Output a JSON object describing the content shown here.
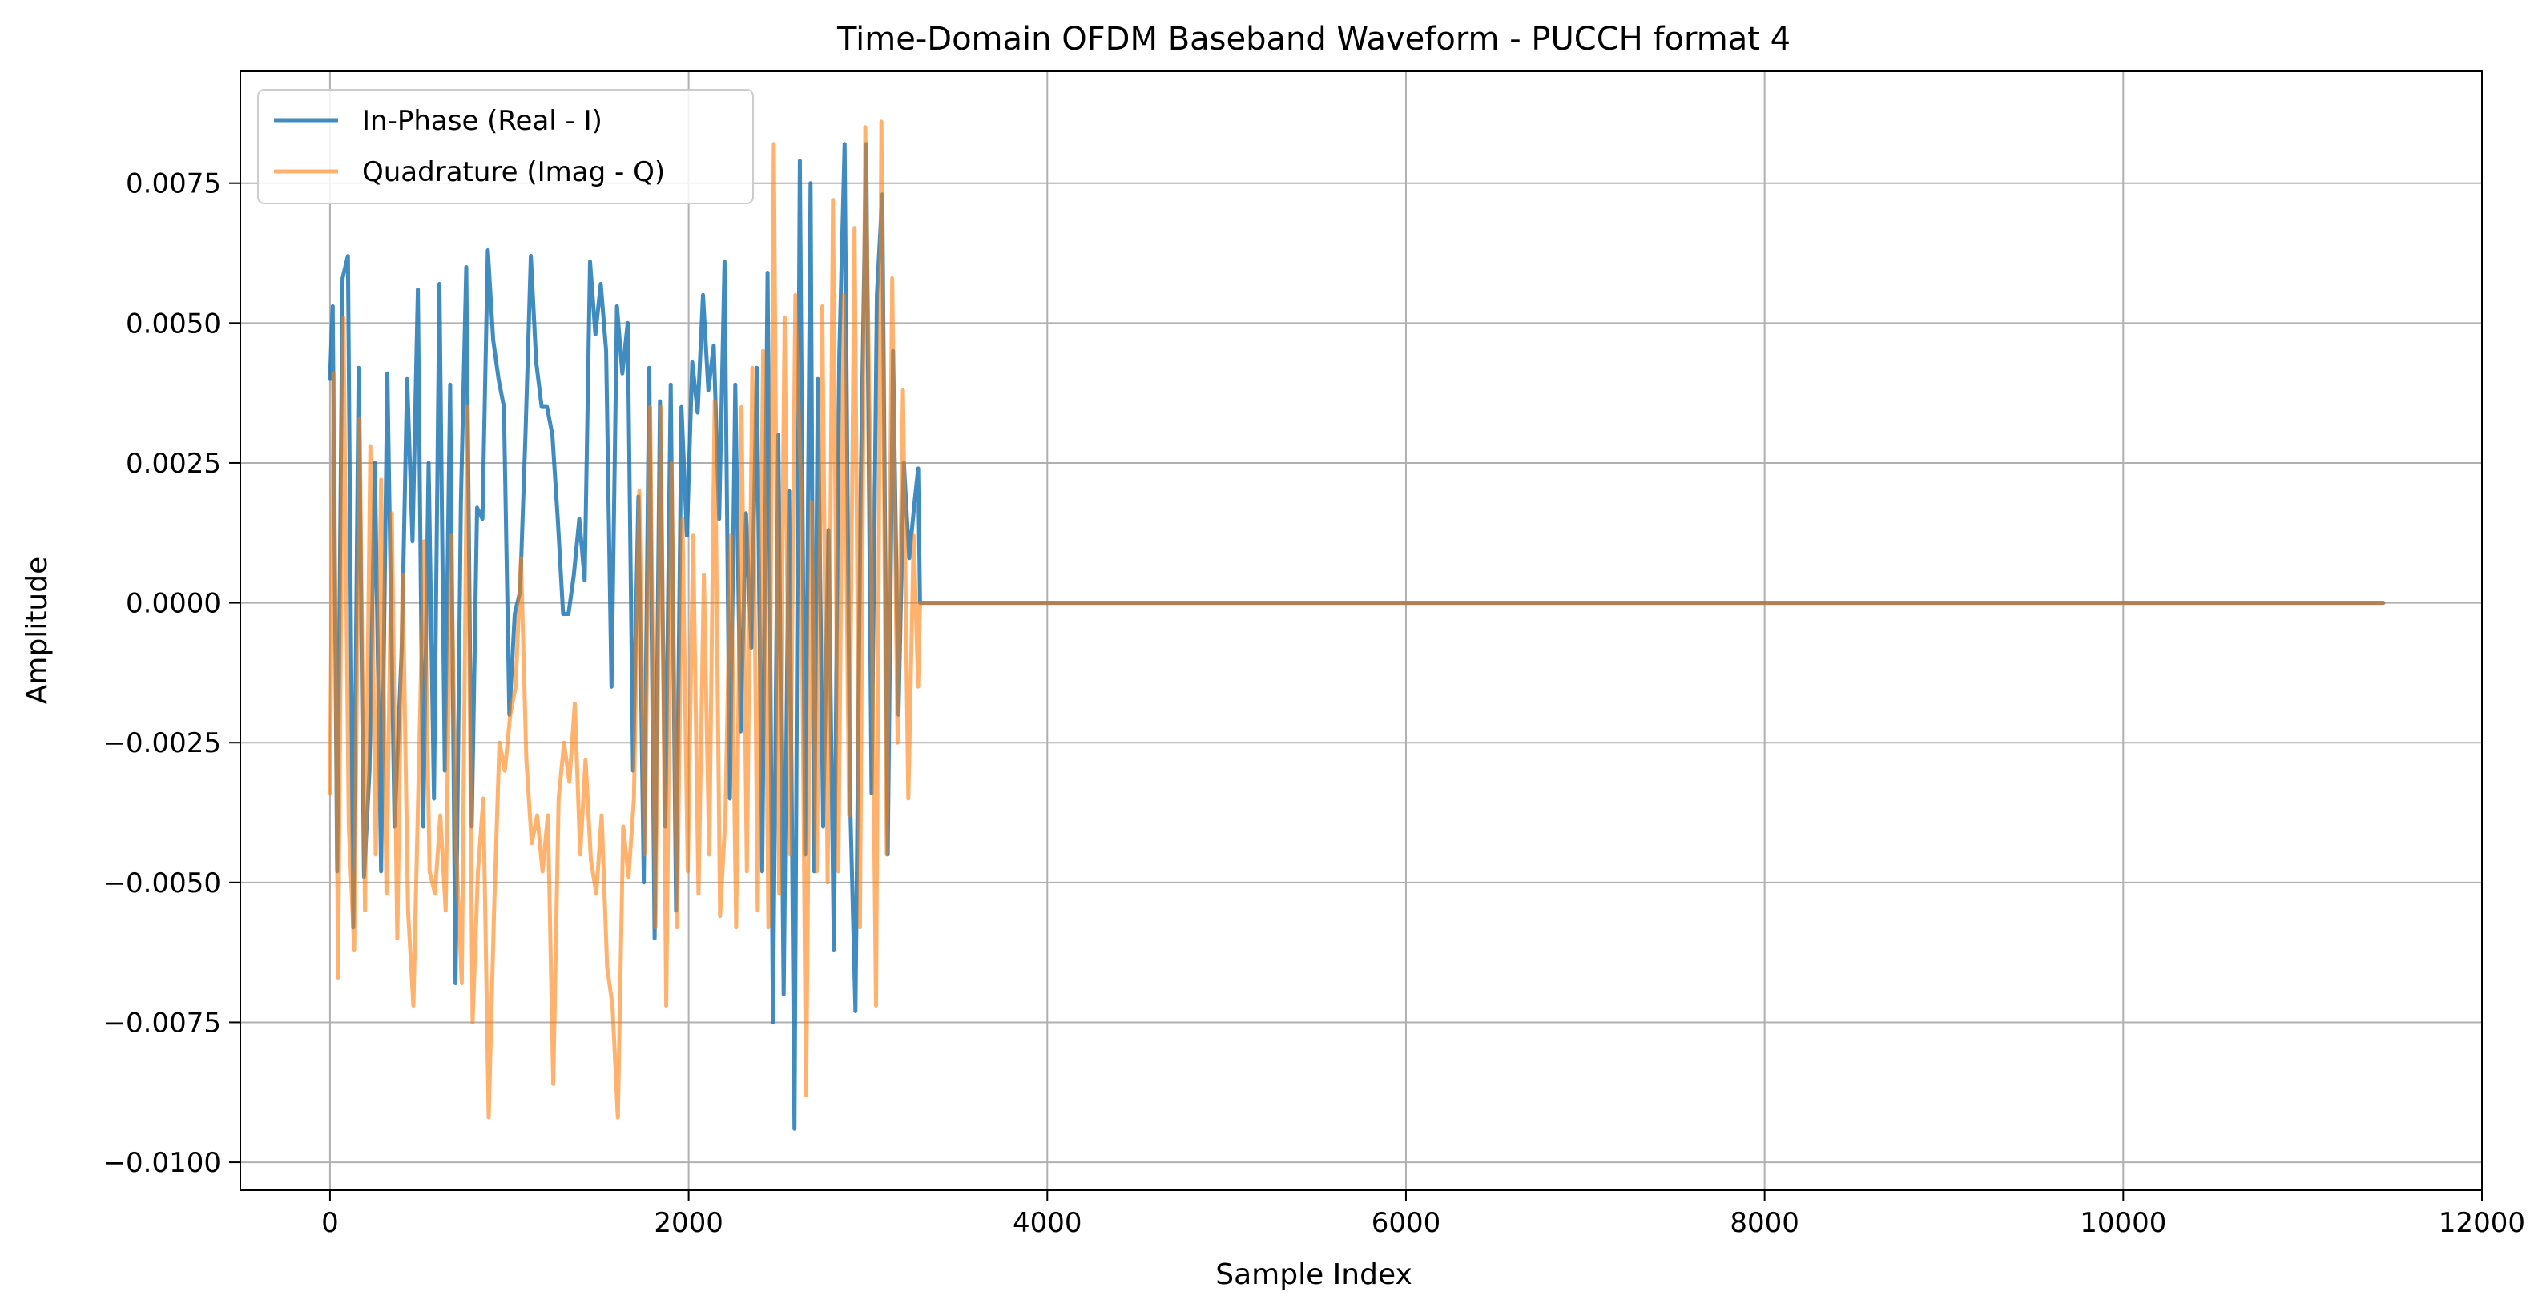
{
  "chart_data": {
    "type": "line",
    "title": "Time-Domain OFDM Baseband Waveform - PUCCH format 4",
    "xlabel": "Sample Index",
    "ylabel": "Amplitude",
    "xlim": [
      -500,
      12000
    ],
    "ylim": [
      -0.0105,
      0.0095
    ],
    "xticks": [
      0,
      2000,
      4000,
      6000,
      8000,
      10000,
      12000
    ],
    "xtick_labels": [
      "0",
      "2000",
      "4000",
      "6000",
      "8000",
      "10000",
      "12000"
    ],
    "yticks": [
      -0.01,
      -0.0075,
      -0.005,
      -0.0025,
      0,
      0.0025,
      0.005,
      0.0075
    ],
    "ytick_labels": [
      "−0.0100",
      "−0.0075",
      "−0.0050",
      "−0.0025",
      "0.0000",
      "0.0025",
      "0.0050",
      "0.0075"
    ],
    "grid": true,
    "legend_position": "upper-left",
    "series": [
      {
        "name": "In-Phase (Real - I)",
        "color": "#1f77b4",
        "x": [
          0,
          15,
          40,
          70,
          100,
          130,
          160,
          190,
          220,
          250,
          285,
          320,
          360,
          400,
          430,
          460,
          490,
          520,
          550,
          580,
          610,
          640,
          670,
          700,
          730,
          760,
          790,
          820,
          850,
          880,
          910,
          940,
          970,
          1000,
          1030,
          1060,
          1090,
          1120,
          1150,
          1180,
          1210,
          1240,
          1270,
          1300,
          1330,
          1360,
          1390,
          1420,
          1450,
          1480,
          1510,
          1540,
          1570,
          1600,
          1630,
          1660,
          1690,
          1720,
          1750,
          1780,
          1810,
          1840,
          1870,
          1900,
          1930,
          1960,
          1990,
          2020,
          2050,
          2080,
          2110,
          2140,
          2170,
          2200,
          2230,
          2260,
          2290,
          2320,
          2350,
          2380,
          2410,
          2440,
          2470,
          2500,
          2530,
          2560,
          2590,
          2620,
          2650,
          2680,
          2700,
          2720,
          2750,
          2780,
          2810,
          2840,
          2870,
          2900,
          2930,
          2960,
          2990,
          3020,
          3050,
          3080,
          3110,
          3140,
          3170,
          3200,
          3230,
          3260,
          3280,
          3290,
          11450
        ],
        "values": [
          0.004,
          0.0053,
          -0.0048,
          0.0058,
          0.0062,
          -0.0058,
          0.0042,
          -0.0049,
          -0.003,
          0.0025,
          -0.0048,
          0.0041,
          -0.004,
          -0.0008,
          0.004,
          0.0011,
          0.0056,
          -0.004,
          0.0025,
          -0.0035,
          0.0057,
          -0.003,
          0.0039,
          -0.0068,
          0.0018,
          0.006,
          -0.004,
          0.0017,
          0.0015,
          0.0063,
          0.0047,
          0.004,
          0.0035,
          -0.002,
          -0.0002,
          0.0002,
          0.003,
          0.0062,
          0.0043,
          0.0035,
          0.0035,
          0.003,
          0.0015,
          -0.0002,
          -0.0002,
          0.0005,
          0.0015,
          0.0004,
          0.0061,
          0.0048,
          0.0057,
          0.0045,
          -0.0015,
          0.0053,
          0.0041,
          0.005,
          -0.003,
          0.0019,
          -0.005,
          0.0042,
          -0.006,
          0.0036,
          -0.004,
          0.0039,
          -0.0055,
          0.0035,
          0.0012,
          0.0043,
          0.0034,
          0.0055,
          0.0038,
          0.0046,
          0.0015,
          0.0061,
          -0.0035,
          0.0039,
          -0.0023,
          0.0016,
          -0.0008,
          0.0042,
          -0.0048,
          0.0059,
          -0.0075,
          0.003,
          -0.007,
          0.002,
          -0.0094,
          0.0079,
          -0.0045,
          0.0075,
          -0.0048,
          0.004,
          -0.004,
          0.0013,
          -0.0062,
          0.0044,
          0.0082,
          -0.0035,
          -0.0073,
          0.0022,
          0.0082,
          -0.0034,
          0.0055,
          0.0073,
          -0.0045,
          0.0045,
          -0.002,
          0.0025,
          0.0008,
          0.0018,
          0.0024,
          0.0,
          0.0
        ]
      },
      {
        "name": "Quadrature (Imag - Q)",
        "color": "#ff7f0e",
        "x": [
          0,
          20,
          45,
          75,
          105,
          135,
          165,
          195,
          225,
          255,
          285,
          315,
          345,
          375,
          405,
          435,
          465,
          495,
          525,
          555,
          585,
          615,
          645,
          675,
          705,
          735,
          765,
          795,
          825,
          855,
          885,
          915,
          945,
          975,
          1005,
          1035,
          1065,
          1095,
          1125,
          1155,
          1185,
          1215,
          1245,
          1275,
          1305,
          1335,
          1365,
          1395,
          1425,
          1455,
          1485,
          1515,
          1545,
          1575,
          1605,
          1635,
          1665,
          1695,
          1725,
          1755,
          1785,
          1815,
          1845,
          1875,
          1905,
          1935,
          1965,
          1995,
          2025,
          2055,
          2085,
          2115,
          2145,
          2175,
          2205,
          2235,
          2265,
          2295,
          2325,
          2355,
          2385,
          2415,
          2445,
          2475,
          2505,
          2535,
          2565,
          2595,
          2625,
          2655,
          2685,
          2715,
          2745,
          2775,
          2805,
          2835,
          2865,
          2895,
          2925,
          2955,
          2985,
          3015,
          3045,
          3075,
          3105,
          3135,
          3165,
          3195,
          3225,
          3255,
          3280,
          3290,
          11450
        ],
        "values": [
          -0.0034,
          0.0041,
          -0.0067,
          0.0051,
          -0.004,
          -0.0062,
          0.0033,
          -0.0055,
          0.0028,
          -0.0045,
          0.0022,
          -0.0052,
          0.0016,
          -0.006,
          0.0005,
          -0.0055,
          -0.0072,
          -0.003,
          0.0011,
          -0.0048,
          -0.0052,
          -0.0038,
          -0.0055,
          0.0012,
          -0.0045,
          -0.0068,
          0.0035,
          -0.0075,
          -0.0048,
          -0.0035,
          -0.0092,
          -0.0055,
          -0.0025,
          -0.003,
          -0.002,
          -0.0015,
          0.0008,
          -0.0028,
          -0.0043,
          -0.0038,
          -0.0048,
          -0.0038,
          -0.0086,
          -0.0035,
          -0.0025,
          -0.0032,
          -0.0018,
          -0.0045,
          -0.0028,
          -0.0046,
          -0.0052,
          -0.0038,
          -0.0065,
          -0.0072,
          -0.0092,
          -0.004,
          -0.0049,
          -0.0035,
          0.002,
          -0.0045,
          0.0035,
          -0.0058,
          0.0035,
          -0.0072,
          0.0025,
          -0.0058,
          0.0015,
          -0.0048,
          0.0012,
          -0.0052,
          0.0005,
          -0.0045,
          0.0036,
          -0.0056,
          -0.0038,
          0.0012,
          -0.0058,
          0.0035,
          -0.0048,
          0.0042,
          -0.0055,
          0.0045,
          -0.0058,
          0.0082,
          -0.0052,
          0.0051,
          -0.0045,
          0.0055,
          0.0022,
          -0.0088,
          0.0018,
          -0.0048,
          0.0053,
          -0.005,
          0.0072,
          -0.0048,
          0.0055,
          -0.0038,
          0.0067,
          -0.0058,
          0.0085,
          0.002,
          -0.0072,
          0.0086,
          -0.0045,
          0.0058,
          -0.0025,
          0.0038,
          -0.0035,
          0.0012,
          -0.0015,
          0.0,
          0.0
        ]
      }
    ]
  }
}
